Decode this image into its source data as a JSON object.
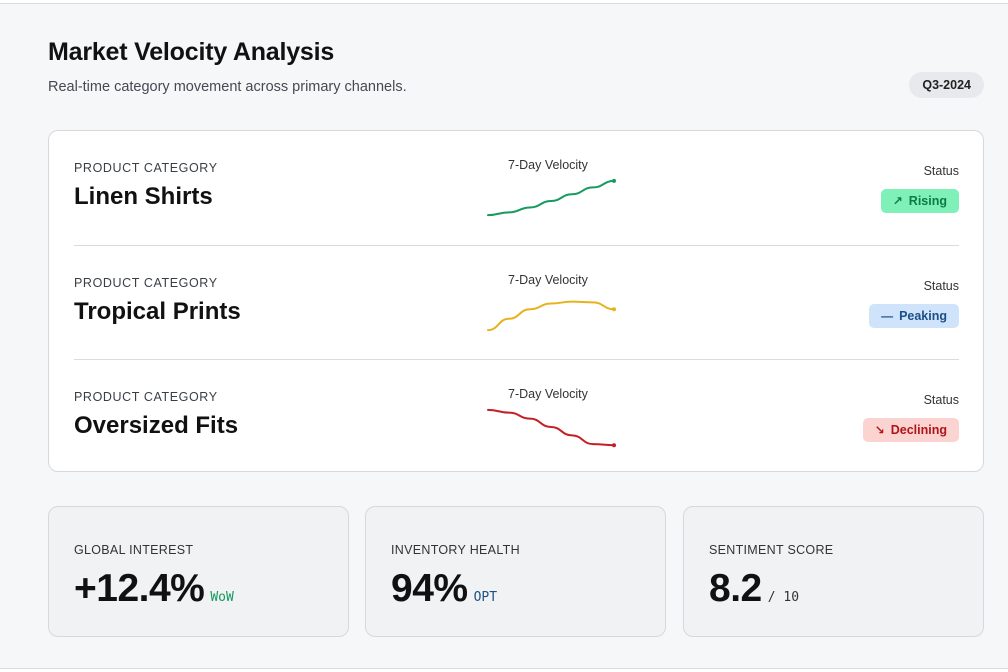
{
  "header": {
    "title": "Market Velocity Analysis",
    "subtitle": "Real-time category movement across primary channels.",
    "quarter_badge": "Q3-2024"
  },
  "categories": {
    "rows": [
      {
        "label": "PRODUCT CATEGORY",
        "name": "Linen Shirts",
        "velocity_label": "7-Day Velocity",
        "status_label": "Status",
        "status": "Rising",
        "status_icon": "trend-up-icon",
        "status_glyph": "↗",
        "status_color": "#0e7a45",
        "status_bg": "#7ef0b8",
        "line_color": "#169a5d",
        "trend": [
          0.05,
          0.12,
          0.25,
          0.42,
          0.6,
          0.78,
          0.95
        ]
      },
      {
        "label": "PRODUCT CATEGORY",
        "name": "Tropical Prints",
        "velocity_label": "7-Day Velocity",
        "status_label": "Status",
        "status": "Peaking",
        "status_icon": "dash-icon",
        "status_glyph": "—",
        "status_color": "#1d4f86",
        "status_bg": "#cfe4fb",
        "line_color": "#e8b21e",
        "trend": [
          0.05,
          0.35,
          0.6,
          0.75,
          0.8,
          0.78,
          0.6
        ]
      },
      {
        "label": "PRODUCT CATEGORY",
        "name": "Oversized Fits",
        "velocity_label": "7-Day Velocity",
        "status_label": "Status",
        "status": "Declining",
        "status_icon": "trend-down-icon",
        "status_glyph": "↘",
        "status_color": "#b0141a",
        "status_bg": "#fbd3d1",
        "line_color": "#c41f24",
        "trend": [
          0.95,
          0.88,
          0.72,
          0.5,
          0.28,
          0.05,
          0.02
        ]
      }
    ]
  },
  "metrics": [
    {
      "label": "GLOBAL INTEREST",
      "value": "+12.4%",
      "unit": "WoW",
      "unit_color": "#169a5d"
    },
    {
      "label": "INVENTORY HEALTH",
      "value": "94%",
      "unit": "OPT",
      "unit_color": "#1d4f86"
    },
    {
      "label": "SENTIMENT SCORE",
      "value": "8.2",
      "unit": "/ 10",
      "unit_color": "#333333"
    }
  ]
}
